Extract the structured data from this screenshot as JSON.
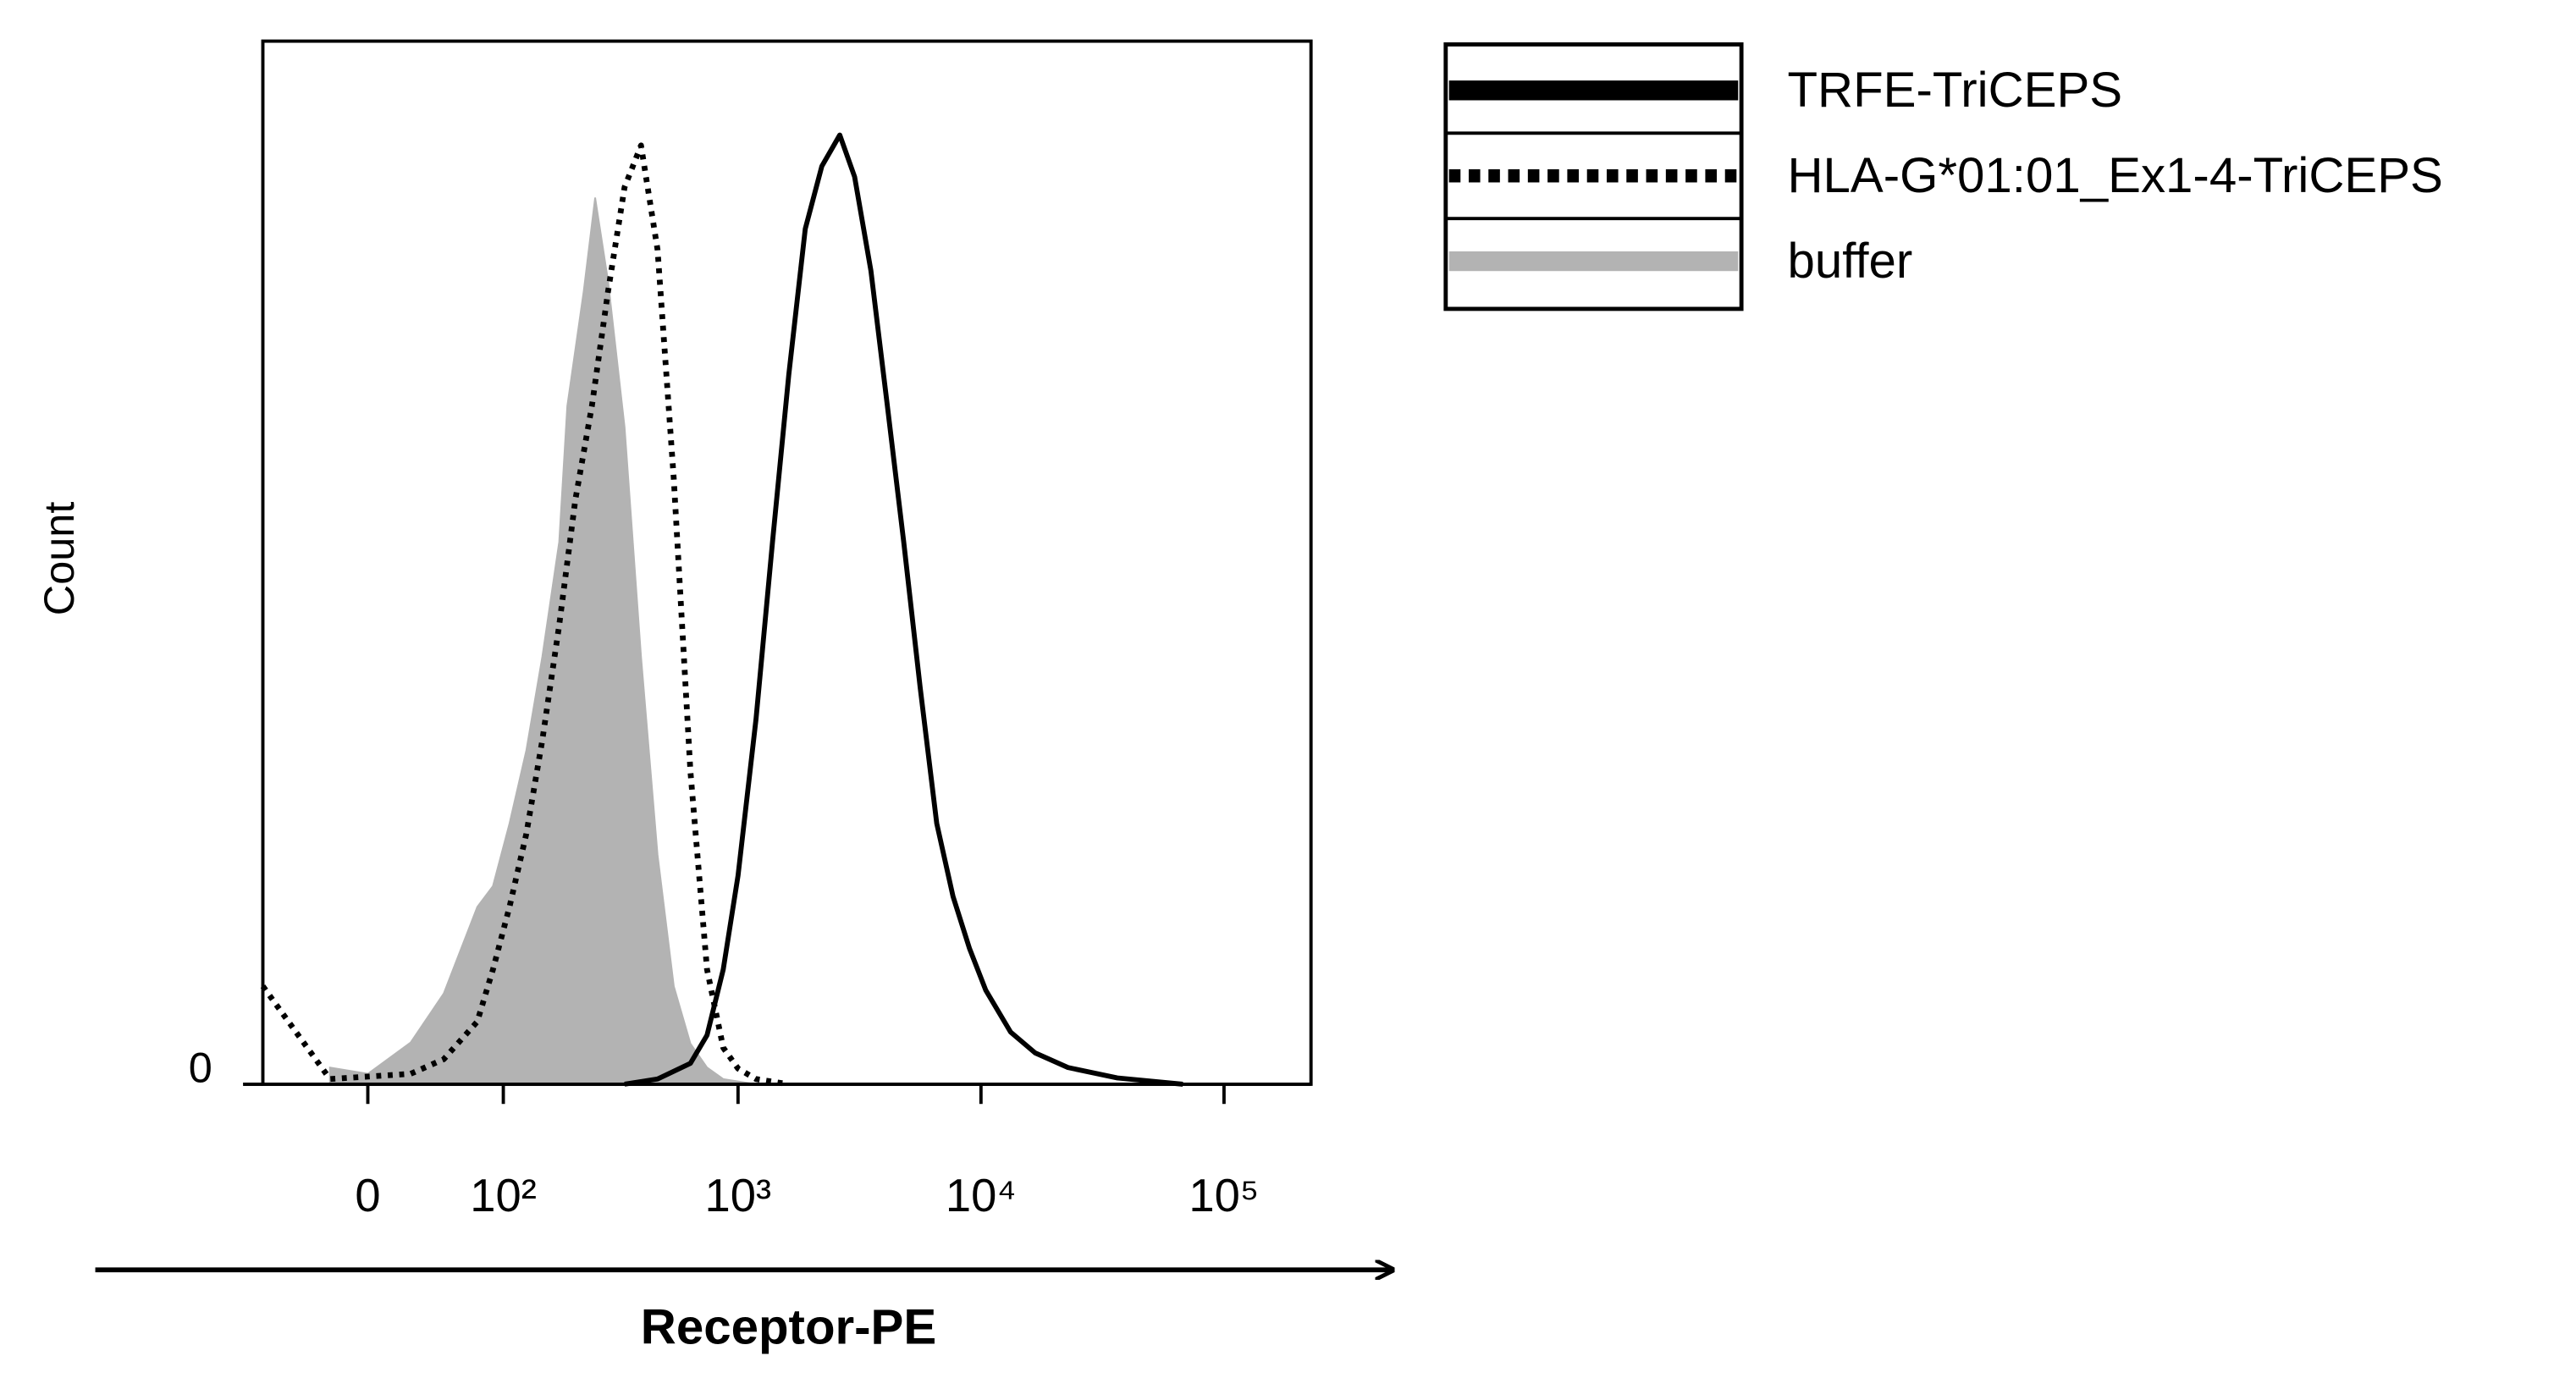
{
  "chart_data": {
    "type": "line",
    "x_label": "Receptor-PE",
    "y_label": "Count",
    "xscale": "biexponential",
    "xlim": [
      -70,
      228000
    ],
    "ylim": [
      0,
      100
    ],
    "xticks": [
      0,
      {
        "value": 100,
        "label": "10²"
      },
      {
        "value": 1000,
        "label": "10³"
      },
      {
        "value": 10000,
        "label": "10⁴"
      },
      {
        "value": 100000,
        "label": "10⁵"
      }
    ],
    "yticks": [
      0
    ],
    "series": [
      {
        "name": "TRFE-TriCEPS",
        "color": "#000000",
        "style": "solid",
        "x": [
          339,
          465,
          636,
          745,
          869,
          1000,
          1186,
          1387,
          1618,
          1892,
          2213,
          2624,
          3020,
          3524,
          4121,
          4809,
          5623,
          6577,
          7674,
          8974,
          10470,
          13240,
          16710,
          22800,
          36400,
          67700
        ],
        "values": [
          0,
          0.5,
          2,
          4.7,
          11,
          20,
          35,
          52,
          68,
          82,
          88,
          91,
          87,
          78,
          65,
          52,
          38,
          25,
          18,
          13,
          9,
          5,
          3,
          1.6,
          0.6,
          0
        ]
      },
      {
        "name": "HLA-G*01:01_Ex1-4-TriCEPS",
        "color": "#000000",
        "style": "dotted",
        "x": [
          -70,
          -22,
          25,
          47,
          74,
          89,
          107,
          128,
          151,
          179,
          210,
          247,
          289,
          339,
          397,
          465,
          543,
          636,
          745,
          869,
          1000,
          1186,
          1618
        ],
        "values": [
          9.4,
          0.5,
          1,
          2.4,
          6,
          11,
          17,
          24,
          33,
          44,
          56,
          65,
          76,
          86,
          90,
          80,
          58,
          30,
          11,
          3.5,
          1.5,
          0.5,
          0
        ]
      },
      {
        "name": "buffer",
        "color": "#b3b3b3",
        "style": "filled",
        "x": [
          -22,
          0,
          25,
          47,
          74,
          89,
          107,
          128,
          151,
          179,
          194,
          228,
          255,
          289,
          339,
          397,
          465,
          543,
          636,
          745,
          869,
          1186
        ],
        "values": [
          1.6,
          1,
          4,
          8.7,
          17,
          19,
          25,
          32,
          41,
          52,
          65,
          76,
          85,
          77,
          63,
          41,
          22,
          9.4,
          3.9,
          1.6,
          0.5,
          0
        ]
      }
    ]
  }
}
